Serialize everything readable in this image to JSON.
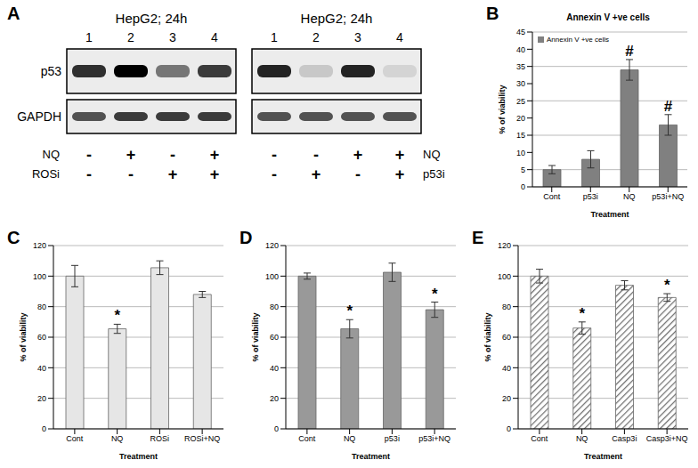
{
  "chart_data": [
    {
      "panel": "A",
      "type": "blot",
      "blots": [
        {
          "title": "HepG2; 24h",
          "lanes": [
            "1",
            "2",
            "3",
            "4"
          ],
          "rows": [
            {
              "name": "p53",
              "intensity": [
                0.8,
                1.0,
                0.5,
                0.75
              ]
            },
            {
              "name": "GAPDH",
              "intensity": [
                0.65,
                0.75,
                0.75,
                0.75
              ]
            }
          ],
          "treatments": [
            {
              "name": "NQ",
              "signs": [
                "-",
                "+",
                "-",
                "+"
              ]
            },
            {
              "name": "ROSi",
              "signs": [
                "-",
                "-",
                "+",
                "+"
              ]
            }
          ]
        },
        {
          "title": "HepG2; 24h",
          "lanes": [
            "1",
            "2",
            "3",
            "4"
          ],
          "rows": [
            {
              "name": "p53",
              "intensity": [
                0.85,
                0.15,
                0.85,
                0.1
              ]
            },
            {
              "name": "GAPDH",
              "intensity": [
                0.65,
                0.65,
                0.65,
                0.65
              ]
            }
          ],
          "treatments": [
            {
              "name": "NQ",
              "signs": [
                "-",
                "-",
                "+",
                "+"
              ]
            },
            {
              "name": "p53i",
              "signs": [
                "-",
                "+",
                "-",
                "+"
              ]
            }
          ]
        }
      ]
    },
    {
      "panel": "B",
      "type": "bar",
      "title": "Annexin V +ve cells",
      "x_label": "Treatment",
      "y_label": "% of viability",
      "categories": [
        "Cont",
        "p53i",
        "NQ",
        "p53i+NQ"
      ],
      "series": [
        {
          "name": "Annexin V +ve cells",
          "color": "#808080",
          "values": [
            5,
            8,
            34,
            18
          ],
          "errors": [
            1.2,
            2.5,
            3,
            3
          ]
        }
      ],
      "annotations": [
        null,
        null,
        "#",
        "#"
      ],
      "ylim": [
        0,
        45
      ],
      "yticks": [
        0,
        5,
        10,
        15,
        20,
        25,
        30,
        35,
        40,
        45
      ],
      "grid": true,
      "legend": "upper left"
    },
    {
      "panel": "C",
      "type": "bar",
      "x_label": "Treatment",
      "y_label": "% of viability",
      "categories": [
        "Cont",
        "NQ",
        "ROSi",
        "ROSi+NQ"
      ],
      "series": [
        {
          "name": "% of viability",
          "color": "#e6e6e6",
          "values": [
            100,
            65.5,
            105.5,
            88
          ],
          "errors": [
            7,
            3,
            4.5,
            2
          ]
        }
      ],
      "annotations": [
        null,
        "*",
        null,
        null
      ],
      "ylim": [
        0,
        120
      ],
      "yticks": [
        0,
        20,
        40,
        60,
        80,
        100,
        120
      ],
      "grid": true
    },
    {
      "panel": "D",
      "type": "bar",
      "x_label": "Treatment",
      "y_label": "% of viability",
      "categories": [
        "Cont",
        "NQ",
        "p53i",
        "p53i+NQ"
      ],
      "series": [
        {
          "name": "% of viability",
          "color": "#999999",
          "values": [
            100,
            65.5,
            102.5,
            78
          ],
          "errors": [
            2,
            6,
            6,
            5
          ]
        }
      ],
      "annotations": [
        null,
        "*",
        null,
        "*"
      ],
      "ylim": [
        0,
        120
      ],
      "yticks": [
        0,
        20,
        40,
        60,
        80,
        100,
        120
      ],
      "grid": true
    },
    {
      "panel": "E",
      "type": "bar",
      "x_label": "Treatment",
      "y_label": "% of viability",
      "categories": [
        "Cont",
        "NQ",
        "Casp3i",
        "Casp3i+NQ"
      ],
      "series": [
        {
          "name": "% of viability",
          "color": "#707070",
          "values": [
            100,
            66,
            94,
            86
          ],
          "errors": [
            4.5,
            4,
            3,
            2.5
          ]
        }
      ],
      "annotations": [
        null,
        "*",
        null,
        "*"
      ],
      "ylim": [
        0,
        120
      ],
      "yticks": [
        0,
        20,
        40,
        60,
        80,
        100,
        120
      ],
      "grid": true
    }
  ]
}
